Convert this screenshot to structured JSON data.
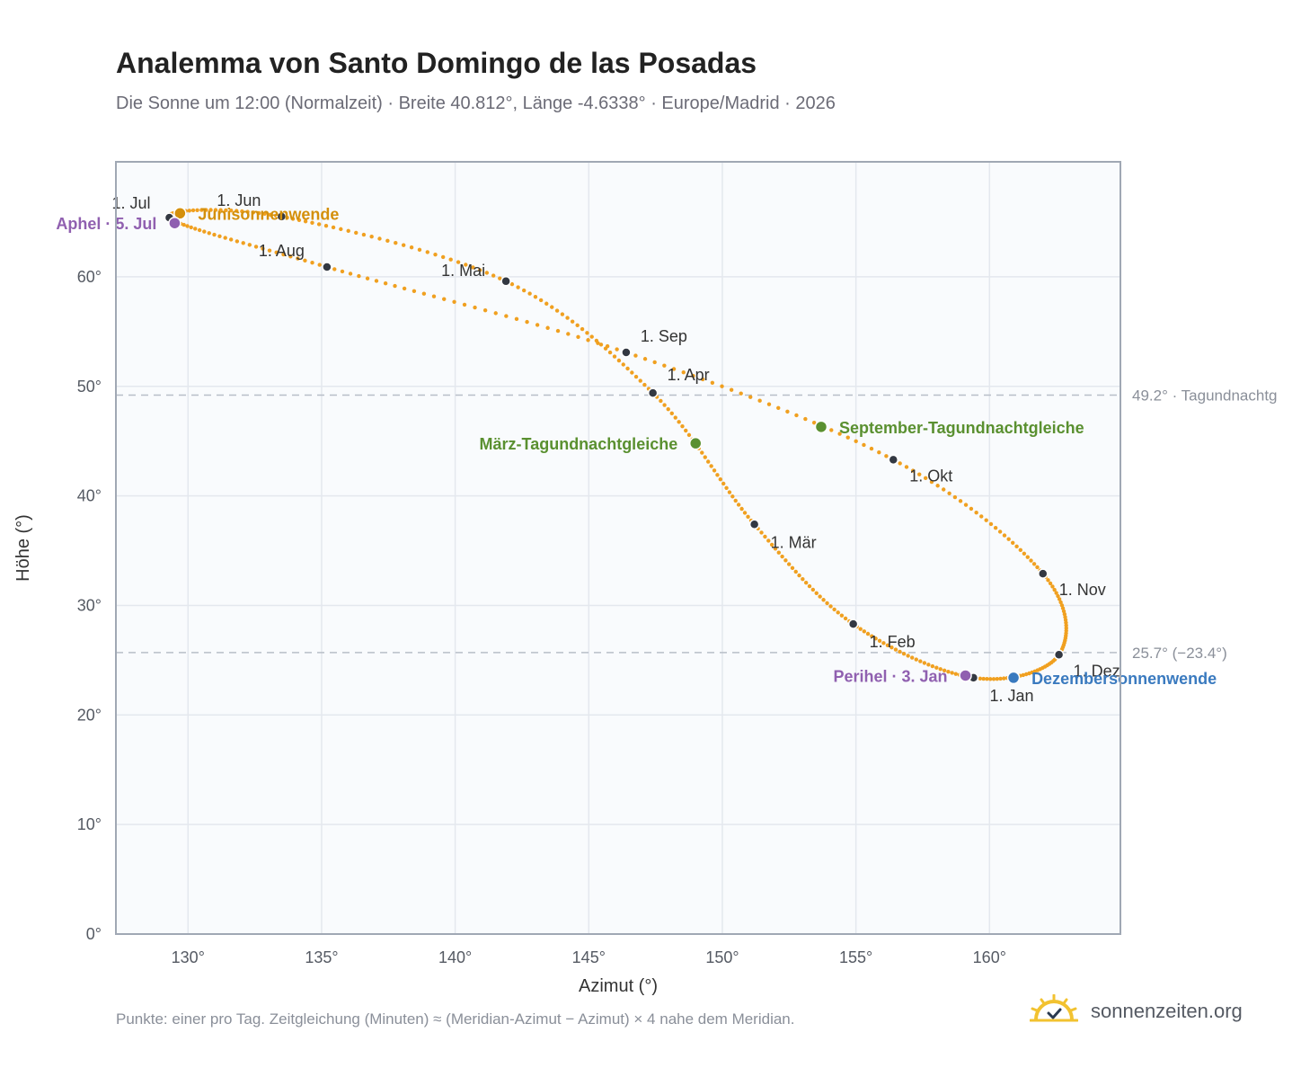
{
  "header": {
    "title": "Analemma von Santo Domingo de las Posadas",
    "subtitle": "Die Sonne um 12:00 (Normalzeit) · Breite 40.812°, Länge -4.6338° · Europe/Madrid · 2026"
  },
  "footer": {
    "note": "Punkte: einer pro Tag. Zeitgleichung (Minuten) ≈ (Meridian-Azimut − Azimut) × 4 nahe dem Meridian.",
    "brand": "sonnenzeiten.org"
  },
  "colors": {
    "curve": "#f0a020",
    "month_marker": "#333842",
    "solstice_june": "#d4900c",
    "solstice_december": "#3a7abf",
    "equinox": "#5a9030",
    "apsis": "#9060b0",
    "reference_line": "#b8bec8",
    "plot_background": "#f9fbfd",
    "grid": "#e4e8ee"
  },
  "chart_data": {
    "type": "scatter",
    "title": "Analemma von Santo Domingo de las Posadas",
    "xlabel": "Azimut (°)",
    "ylabel": "Höhe (°)",
    "xlim": [
      127.3,
      164.9
    ],
    "ylim": [
      0,
      70.5
    ],
    "xticks": [
      130,
      135,
      140,
      145,
      150,
      155,
      160
    ],
    "yticks": [
      0,
      10,
      20,
      30,
      40,
      50,
      60
    ],
    "x_tick_labels": [
      "130°",
      "135°",
      "140°",
      "145°",
      "150°",
      "155°",
      "160°"
    ],
    "y_tick_labels": [
      "0°",
      "10°",
      "20°",
      "30°",
      "40°",
      "50°",
      "60°"
    ],
    "grid": true,
    "series": [
      {
        "description_visible": false,
        "month_points": [
          {
            "label": "1. Jan",
            "x": 159.4,
            "y": 23.4
          },
          {
            "label": "1. Feb",
            "x": 154.9,
            "y": 28.3
          },
          {
            "label": "1. Mär",
            "x": 151.2,
            "y": 37.4
          },
          {
            "label": "1. Apr",
            "x": 147.4,
            "y": 49.4
          },
          {
            "label": "1. Mai",
            "x": 141.9,
            "y": 59.6
          },
          {
            "label": "1. Jun",
            "x": 133.5,
            "y": 65.5
          },
          {
            "label": "1. Jul",
            "x": 129.3,
            "y": 65.4
          },
          {
            "label": "1. Aug",
            "x": 135.2,
            "y": 60.9
          },
          {
            "label": "1. Sep",
            "x": 146.4,
            "y": 53.1
          },
          {
            "label": "1. Okt",
            "x": 156.4,
            "y": 43.3
          },
          {
            "label": "1. Nov",
            "x": 162.0,
            "y": 32.9
          },
          {
            "label": "1. Dez",
            "x": 162.6,
            "y": 25.5
          }
        ]
      }
    ],
    "events": [
      {
        "label": "Junisonnenwende",
        "x": 129.7,
        "y": 65.8,
        "kind": "solstice_june"
      },
      {
        "label": "Aphel · 5. Jul",
        "x": 129.5,
        "y": 64.9,
        "kind": "apsis"
      },
      {
        "label": "März-Tagundnachtgleiche",
        "x": 149.0,
        "y": 44.8,
        "kind": "equinox"
      },
      {
        "label": "September-Tagundnachtgleiche",
        "x": 153.7,
        "y": 46.3,
        "kind": "equinox"
      },
      {
        "label": "Perihel · 3. Jan",
        "x": 159.1,
        "y": 23.6,
        "kind": "apsis"
      },
      {
        "label": "Dezembersonnenwende",
        "x": 160.9,
        "y": 23.4,
        "kind": "solstice_december"
      }
    ],
    "reference_lines": [
      {
        "y": 49.2,
        "label": "49.2° · Tagundnachtg"
      },
      {
        "y": 25.7,
        "label": "25.7° (−23.4°)"
      }
    ]
  }
}
